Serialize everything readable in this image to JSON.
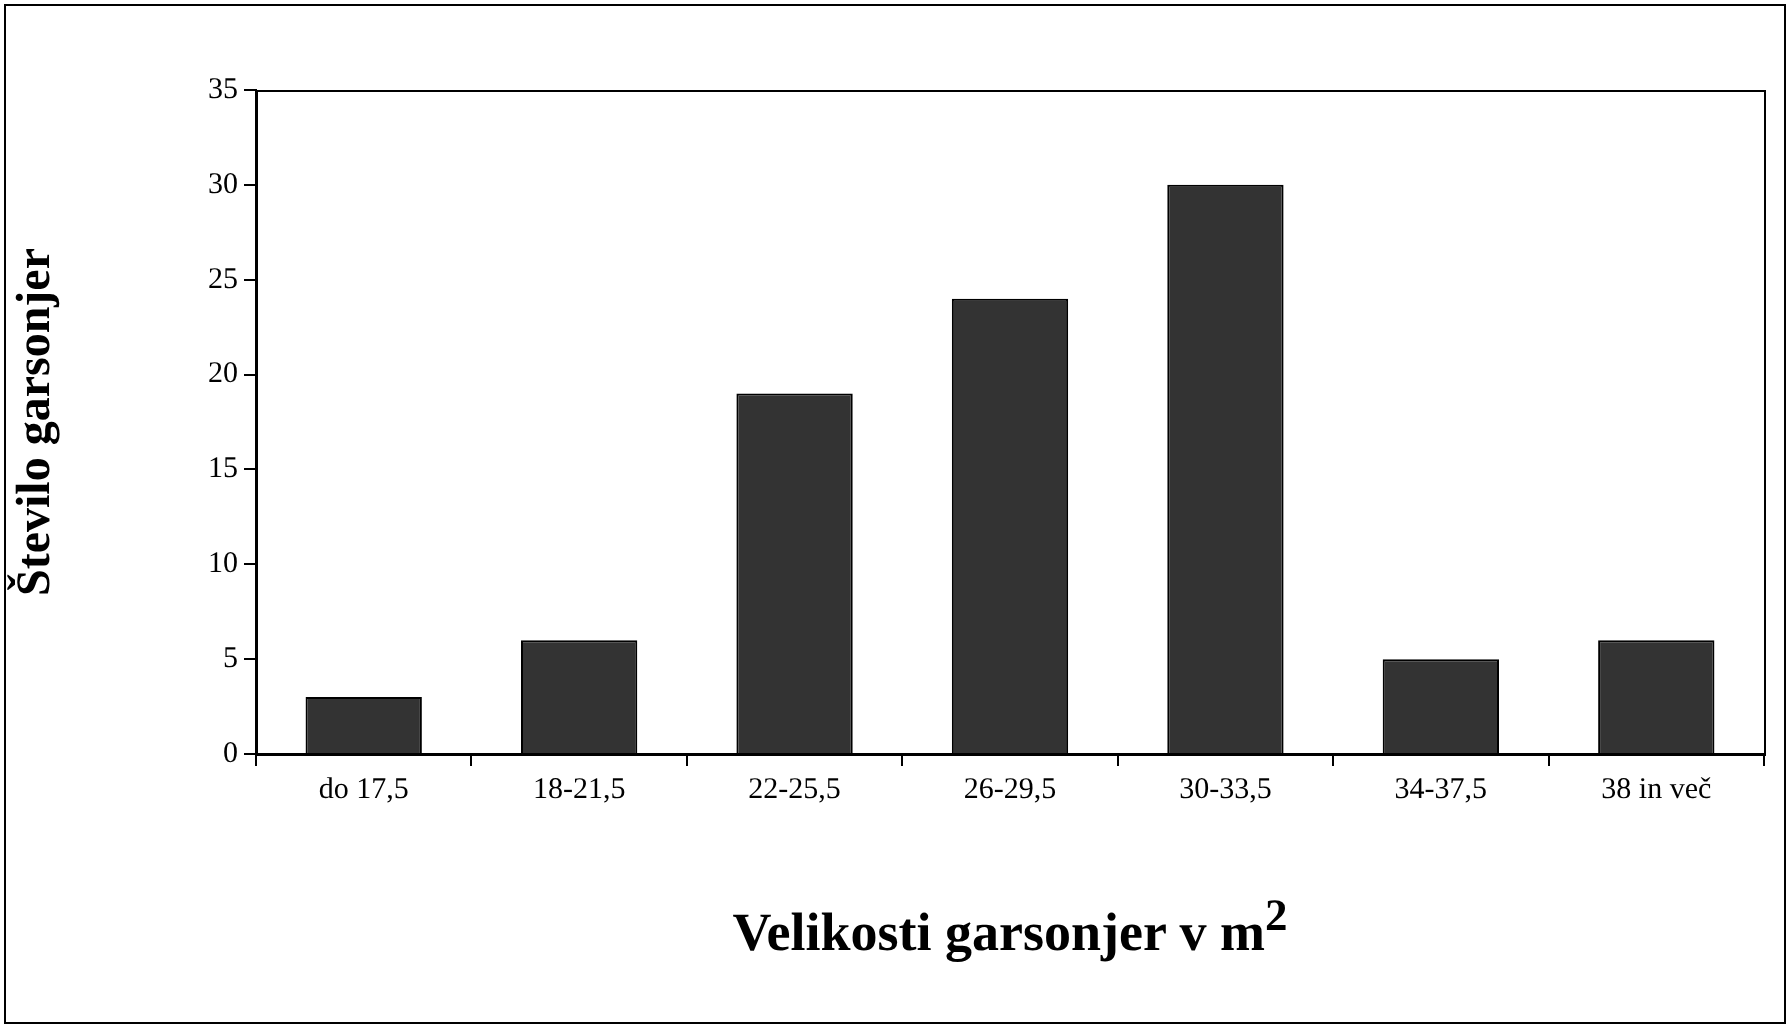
{
  "chart_data": {
    "type": "bar",
    "xlabel": "Velikosti garsonjer v m$^{2}$",
    "ylabel": "Število garsonjer",
    "categories": [
      "do 17,5",
      "18-21,5",
      "22-25,5",
      "26-29,5",
      "30-33,5",
      "34-37,5",
      "38 in več"
    ],
    "values": [
      3,
      6,
      19,
      24,
      30,
      5,
      6
    ],
    "color": "#333333",
    "ylim": [
      0,
      35
    ],
    "yticks": [
      0,
      5,
      10,
      15,
      20,
      25,
      30,
      35
    ],
    "grid": false,
    "legend": false
  }
}
